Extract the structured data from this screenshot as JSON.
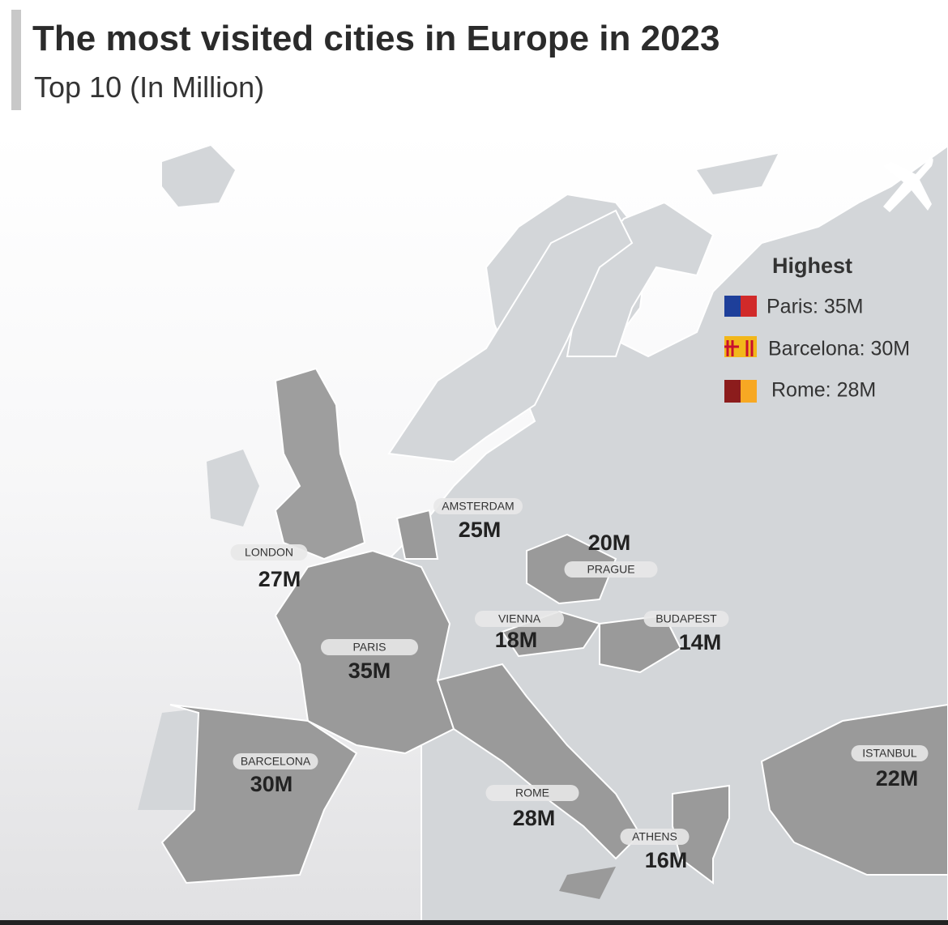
{
  "header": {
    "title": "The most visited cities in Europe in 2023",
    "subtitle": "Top 10 (In Million)"
  },
  "legend": {
    "title": "Highest",
    "entries": [
      "Paris: 35M",
      "Barcelona: 30M",
      "Rome: 28M"
    ]
  },
  "cities": [
    {
      "name": "LONDON",
      "visitors": "27M"
    },
    {
      "name": "AMSTERDAM",
      "visitors": "25M"
    },
    {
      "name": "PRAGUE",
      "visitors": "20M"
    },
    {
      "name": "PARIS",
      "visitors": "35M"
    },
    {
      "name": "VIENNA",
      "visitors": "18M"
    },
    {
      "name": "BUDAPEST",
      "visitors": "14M"
    },
    {
      "name": "BARCELONA",
      "visitors": "30M"
    },
    {
      "name": "ROME",
      "visitors": "28M"
    },
    {
      "name": "ATHENS",
      "visitors": "16M"
    },
    {
      "name": "ISTANBUL",
      "visitors": "22M"
    }
  ]
}
